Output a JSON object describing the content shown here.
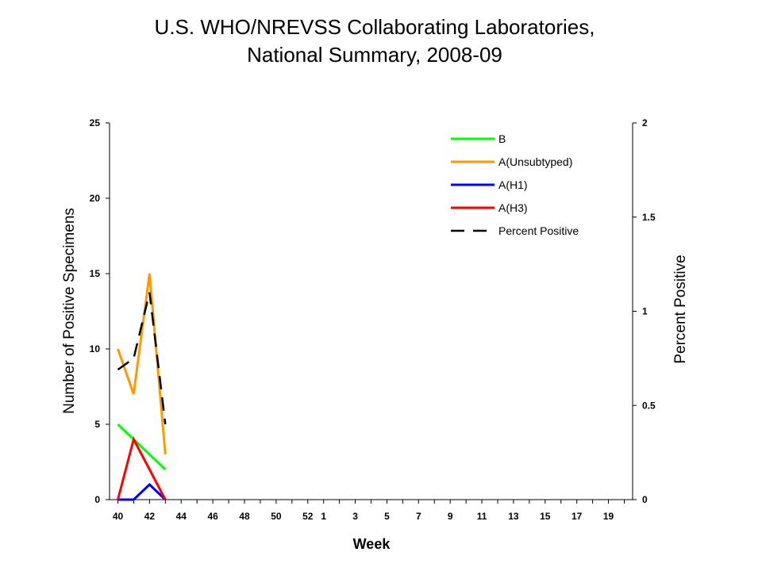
{
  "chart_data": {
    "type": "line",
    "title_line1": "U.S. WHO/NREVSS Collaborating Laboratories,",
    "title_line2": "National Summary, 2008-09",
    "xlabel": "Week",
    "ylabel": "Number of Positive Specimens",
    "y2label": "Percent Positive",
    "x_ticks": [
      "40",
      "42",
      "44",
      "46",
      "48",
      "50",
      "52",
      "1",
      "3",
      "5",
      "7",
      "9",
      "11",
      "13",
      "15",
      "17",
      "19"
    ],
    "x_weeks": [
      "40",
      "41",
      "42",
      "43",
      "44",
      "45",
      "46",
      "47",
      "48",
      "49",
      "50",
      "51",
      "52",
      "1",
      "2",
      "3",
      "4",
      "5",
      "6",
      "7",
      "8",
      "9",
      "10",
      "11",
      "12",
      "13",
      "14",
      "15",
      "16",
      "17",
      "18",
      "19",
      "20"
    ],
    "ylim": [
      0,
      25
    ],
    "y_ticks": [
      "0",
      "5",
      "10",
      "15",
      "20",
      "25"
    ],
    "y2lim": [
      0,
      2
    ],
    "y2_ticks": [
      "0",
      "0.5",
      "1",
      "1.5",
      "2"
    ],
    "series": [
      {
        "name": "B",
        "axis": "left",
        "color": "#00ff00",
        "style": "solid",
        "x": [
          "40",
          "41",
          "42",
          "43"
        ],
        "values": [
          5,
          4,
          3,
          2
        ]
      },
      {
        "name": "A(Unsubtyped)",
        "axis": "left",
        "color": "#ff9900",
        "style": "solid",
        "x": [
          "40",
          "41",
          "42",
          "43"
        ],
        "values": [
          10,
          7,
          15,
          3
        ]
      },
      {
        "name": "A(H1)",
        "axis": "left",
        "color": "#0000ff",
        "style": "solid",
        "x": [
          "40",
          "41",
          "42",
          "43"
        ],
        "values": [
          0,
          0,
          1,
          0
        ]
      },
      {
        "name": "A(H3)",
        "axis": "left",
        "color": "#ff0000",
        "style": "solid",
        "x": [
          "40",
          "41",
          "42",
          "43"
        ],
        "values": [
          0,
          4,
          2,
          0
        ]
      },
      {
        "name": "Percent Positive",
        "axis": "right",
        "color": "#000000",
        "style": "dashed",
        "x": [
          "40",
          "41",
          "42",
          "43"
        ],
        "values": [
          0.69,
          0.75,
          1.1,
          0.4
        ]
      }
    ],
    "legend_position": "top-right",
    "grid": false
  }
}
